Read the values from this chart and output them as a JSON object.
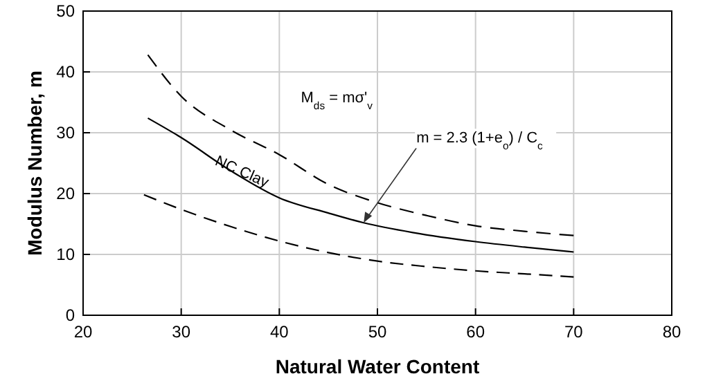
{
  "chart_data": {
    "type": "line",
    "xlabel": "Natural Water Content",
    "ylabel": "Modulus Number, m",
    "xlim": [
      20,
      80
    ],
    "xticks": [
      20,
      30,
      40,
      50,
      60,
      70,
      80
    ],
    "ylim": [
      0,
      50
    ],
    "yticks": [
      0,
      10,
      20,
      30,
      40,
      50
    ],
    "grid": true,
    "series": [
      {
        "color": "#000000",
        "line_style": "dashed",
        "x": [
          26.6,
          30,
          35,
          40,
          45,
          50,
          55,
          60,
          65,
          70
        ],
        "values": [
          42.8,
          36.0,
          30.5,
          26.4,
          21.5,
          18.5,
          16.4,
          14.7,
          13.8,
          13.1
        ]
      },
      {
        "color": "#000000",
        "line_style": "solid",
        "x": [
          26.6,
          30,
          35,
          40,
          45,
          48.6,
          53.6,
          60,
          65,
          70
        ],
        "values": [
          32.4,
          29.2,
          23.8,
          19.3,
          16.8,
          15.2,
          13.6,
          12.1,
          11.2,
          10.4
        ]
      },
      {
        "color": "#000000",
        "line_style": "dashed",
        "x": [
          26.2,
          30,
          35,
          40,
          45,
          50,
          55,
          60,
          65,
          70
        ],
        "values": [
          19.8,
          17.4,
          14.6,
          12.2,
          10.3,
          8.9,
          8.0,
          7.3,
          6.8,
          6.3
        ]
      }
    ],
    "annotations": [
      "M$_{ds}$ = mσ'$_{v}$",
      {
        "text": "NC Clay",
        "x": 36,
        "y": 22.9
      },
      {
        "text": "m = 2.3 (1+e$_{o}$) / C$_{c}$",
        "x": 48.6,
        "y": 15.2
      }
    ]
  }
}
